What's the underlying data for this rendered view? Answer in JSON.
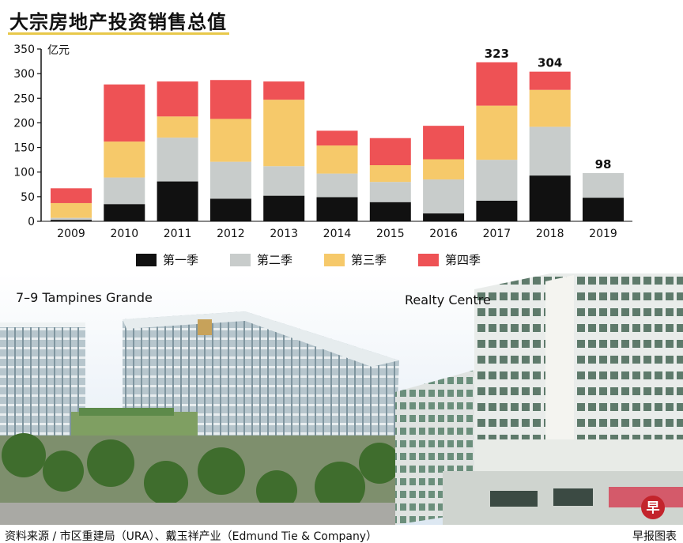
{
  "title": "大宗房地产投资销售总值",
  "chart_data": {
    "type": "bar",
    "stacked": true,
    "categories": [
      "2009",
      "2010",
      "2011",
      "2012",
      "2013",
      "2014",
      "2015",
      "2016",
      "2017",
      "2018",
      "2019"
    ],
    "series": [
      {
        "name": "第一季",
        "color": "#111111",
        "values": [
          3,
          35,
          81,
          46,
          52,
          49,
          39,
          16,
          42,
          93,
          48
        ]
      },
      {
        "name": "第二季",
        "color": "#c8cccb",
        "values": [
          4,
          54,
          89,
          75,
          60,
          48,
          41,
          69,
          83,
          99,
          50
        ]
      },
      {
        "name": "第三季",
        "color": "#f6c96a",
        "values": [
          30,
          73,
          43,
          87,
          135,
          57,
          34,
          41,
          110,
          75,
          0
        ]
      },
      {
        "name": "第四季",
        "color": "#ee5255",
        "values": [
          30,
          116,
          71,
          79,
          37,
          30,
          55,
          68,
          88,
          37,
          0
        ]
      }
    ],
    "data_labels": {
      "2017": "323",
      "2018": "304",
      "2019": "98"
    },
    "ylabel": "亿元",
    "ylim": [
      0,
      350
    ],
    "yticks": [
      0,
      50,
      100,
      150,
      200,
      250,
      300,
      350
    ],
    "grid": false,
    "legend_position": "bottom"
  },
  "photos": {
    "left_caption": "7–9 Tampines Grande",
    "right_caption": "Realty Centre"
  },
  "footer": {
    "source": "资料来源 / 市区重建局（URA）、戴玉祥产业（Edmund Tie & Company）",
    "credit": "早报图表"
  },
  "logo_letter": "早"
}
